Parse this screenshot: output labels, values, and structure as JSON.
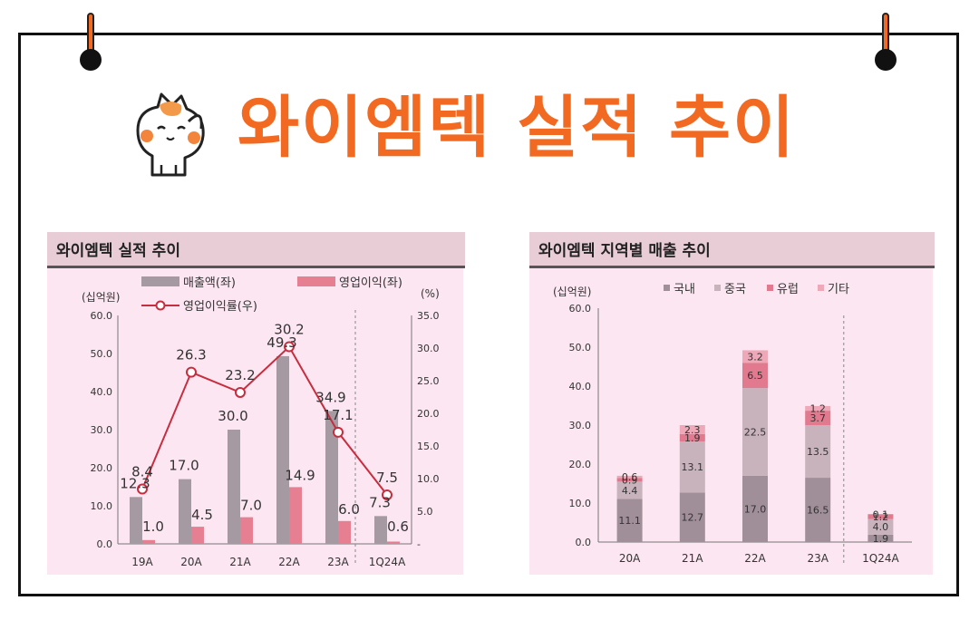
{
  "main_title": "와이엠텍 실적 추이",
  "colors": {
    "accent": "#f26a21",
    "panel_bg": "#fce6f1",
    "header_bg": "#e8cdd6",
    "revenue_bar": "#a69aa2",
    "op_profit_bar": "#e57f91",
    "margin_line": "#c62d3f",
    "domestic": "#a08f98",
    "china": "#c8b2bc",
    "europe": "#e17a8e",
    "other": "#efa8b8"
  },
  "left_panel": {
    "header": "와이엠텍 실적 추이"
  },
  "right_panel": {
    "header": "와이엠텍 지역별 매출 추이"
  },
  "chart_data": [
    {
      "type": "bar",
      "title": "와이엠텍 실적 추이",
      "categories": [
        "19A",
        "20A",
        "21A",
        "22A",
        "23A",
        "1Q24A"
      ],
      "y_left_unit": "(십억원)",
      "y_right_unit": "(%)",
      "y_left_lim": [
        0,
        60
      ],
      "y_left_ticks": [
        "0.0",
        "10.0",
        "20.0",
        "30.0",
        "40.0",
        "50.0",
        "60.0"
      ],
      "y_right_lim": [
        0,
        35
      ],
      "y_right_ticks": [
        "-",
        "5.0",
        "10.0",
        "15.0",
        "20.0",
        "25.0",
        "30.0",
        "35.0"
      ],
      "series": [
        {
          "name": "매출액(좌)",
          "kind": "bar",
          "axis": "left",
          "values": [
            12.3,
            17.0,
            30.0,
            49.3,
            34.9,
            7.3
          ],
          "labels": [
            "12.3",
            "17.0",
            "30.0",
            "49.3",
            "34.9",
            "7.3"
          ]
        },
        {
          "name": "영업이익(좌)",
          "kind": "bar",
          "axis": "left",
          "values": [
            1.0,
            4.5,
            7.0,
            14.9,
            6.0,
            0.6
          ],
          "labels": [
            "1.0",
            "4.5",
            "7.0",
            "14.9",
            "6.0",
            "0.6"
          ]
        },
        {
          "name": "영업이익률(우)",
          "kind": "line",
          "axis": "right",
          "values": [
            8.4,
            26.3,
            23.2,
            30.2,
            17.1,
            7.5
          ],
          "labels": [
            "8.4",
            "26.3",
            "23.2",
            "30.2",
            "17.1",
            "7.5"
          ]
        }
      ],
      "legend_placement": "top",
      "divider_before_last": true
    },
    {
      "type": "bar",
      "stacked": true,
      "title": "와이엠텍 지역별 매출 추이",
      "categories": [
        "20A",
        "21A",
        "22A",
        "23A",
        "1Q24A"
      ],
      "y_unit": "(십억원)",
      "ylim": [
        0,
        60
      ],
      "y_ticks": [
        "0.0",
        "10.0",
        "20.0",
        "30.0",
        "40.0",
        "50.0",
        "60.0"
      ],
      "series": [
        {
          "name": "국내",
          "values": [
            11.1,
            12.7,
            17.0,
            16.5,
            1.9
          ],
          "labels": [
            "11.1",
            "12.7",
            "17.0",
            "16.5",
            "1.9"
          ]
        },
        {
          "name": "중국",
          "values": [
            4.4,
            13.1,
            22.5,
            13.5,
            4.0
          ],
          "labels": [
            "4.4",
            "13.1",
            "22.5",
            "13.5",
            "4.0"
          ]
        },
        {
          "name": "유럽",
          "values": [
            0.9,
            1.9,
            6.5,
            3.7,
            1.2
          ],
          "labels": [
            "0.9",
            "1.9",
            "6.5",
            "3.7",
            "1.2"
          ]
        },
        {
          "name": "기타",
          "values": [
            0.6,
            2.3,
            3.2,
            1.2,
            0.1
          ],
          "labels": [
            "0.6",
            "2.3",
            "3.2",
            "1.2",
            "0.1"
          ]
        }
      ],
      "legend_placement": "top",
      "divider_before_last": true
    }
  ]
}
